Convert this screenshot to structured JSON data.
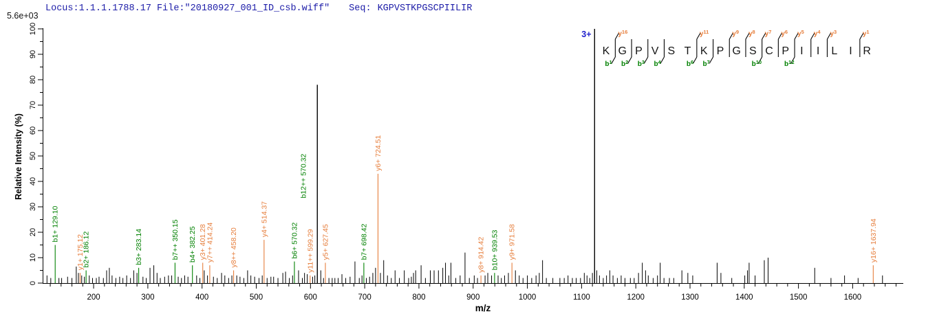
{
  "header": {
    "locus": "Locus:1.1.1.1788.17 File:\"20180927_001_ID_csb.wiff\"",
    "seq_label": "Seq:",
    "sequence": "KGPVSTKPGSCPIILIR"
  },
  "y_axis": {
    "title": "Relative  Intensity (%)",
    "max_intensity_label": "5.6e+03"
  },
  "x_axis": {
    "title": "m/z"
  },
  "peptide": {
    "charge_label": "3+",
    "sequence": "KGPVSTKPGSCPIILIR",
    "cuts": [
      {
        "gap": 0,
        "y": "y16",
        "b": "b1"
      },
      {
        "gap": 1,
        "b": "b2"
      },
      {
        "gap": 2,
        "b": "b3"
      },
      {
        "gap": 3,
        "b": "b4"
      },
      {
        "gap": 5,
        "y": "y11",
        "b": "b6"
      },
      {
        "gap": 6,
        "b": "b7"
      },
      {
        "gap": 7,
        "y": "y9"
      },
      {
        "gap": 8,
        "y": "y8"
      },
      {
        "gap": 9,
        "y": "y7",
        "b": "b10"
      },
      {
        "gap": 10,
        "y": "y6"
      },
      {
        "gap": 11,
        "y": "y5",
        "b": "b12"
      },
      {
        "gap": 12,
        "y": "y4"
      },
      {
        "gap": 13,
        "y": "y3"
      },
      {
        "gap": 15,
        "y": "y1"
      }
    ]
  },
  "colors": {
    "b_ion": "#008000",
    "y_ion": "#E67E3C",
    "peak": "#000000",
    "precursor_charge": "#2121CC",
    "header_text": "#1C1CA8"
  },
  "chart_data": {
    "type": "bar",
    "subtype": "ms2-fragmentation-spectrum",
    "xlabel": "m/z",
    "ylabel": "Relative  Intensity (%)",
    "xlim": [
      106,
      1690
    ],
    "ylim": [
      0,
      100
    ],
    "x_ticks": [
      200,
      300,
      400,
      500,
      600,
      700,
      800,
      900,
      1000,
      1100,
      1200,
      1300,
      1400,
      1500,
      1600
    ],
    "y_ticks": [
      0,
      10,
      20,
      30,
      40,
      50,
      60,
      70,
      80,
      90,
      100
    ],
    "annotated_peaks": [
      {
        "ion": "b1+",
        "mz": "129.10",
        "intensity": 15,
        "series": "b"
      },
      {
        "ion": "y1+",
        "mz": "175.12",
        "intensity": 4,
        "series": "y"
      },
      {
        "ion": "b2+",
        "mz": "186.12",
        "intensity": 5,
        "series": "b"
      },
      {
        "ion": "b3+",
        "mz": "283.14",
        "intensity": 6,
        "series": "b"
      },
      {
        "ion": "b7++",
        "mz": "350.15",
        "intensity": 8,
        "series": "b"
      },
      {
        "ion": "b4+",
        "mz": "382.25",
        "intensity": 7,
        "series": "b"
      },
      {
        "ion": "y3+",
        "mz": "401.28",
        "intensity": 8,
        "series": "y"
      },
      {
        "ion": "y7++",
        "mz": "414.24",
        "intensity": 7,
        "series": "y"
      },
      {
        "ion": "y8++",
        "mz": "458.20",
        "intensity": 5,
        "series": "y"
      },
      {
        "ion": "y4+",
        "mz": "514.37",
        "intensity": 17,
        "series": "y"
      },
      {
        "ion": "b6+",
        "mz": "570.32",
        "intensity": 8.5,
        "series": "b"
      },
      {
        "ion": "b12++",
        "mz": "570.32",
        "intensity": 8.5,
        "series": "b"
      },
      {
        "ion": "y11++",
        "mz": "599.29",
        "intensity": 3,
        "series": "y"
      },
      {
        "ion": null,
        "mz": "612.6",
        "intensity": 78,
        "series": "unassigned"
      },
      {
        "ion": "y5+",
        "mz": "627.45",
        "intensity": 8,
        "series": "y"
      },
      {
        "ion": "b7+",
        "mz": "698.42",
        "intensity": 8,
        "series": "b"
      },
      {
        "ion": "y6+",
        "mz": "724.51",
        "intensity": 43,
        "series": "y"
      },
      {
        "ion": "y8+",
        "mz": "914.42",
        "intensity": 3,
        "series": "y"
      },
      {
        "ion": "b10+",
        "mz": "939.53",
        "intensity": 4,
        "series": "b"
      },
      {
        "ion": "y9+",
        "mz": "971.58",
        "intensity": 8,
        "series": "y"
      },
      {
        "ion": null,
        "mz": "1124",
        "intensity": 100,
        "series": "precursor"
      },
      {
        "ion": "y16+",
        "mz": "1637.94",
        "intensity": 7,
        "series": "y"
      }
    ],
    "unannotated_peaks": [
      [
        114,
        3
      ],
      [
        121,
        2
      ],
      [
        136,
        2
      ],
      [
        141,
        2
      ],
      [
        152,
        2.5
      ],
      [
        160,
        2
      ],
      [
        168,
        6.5
      ],
      [
        172,
        4
      ],
      [
        178,
        3
      ],
      [
        183,
        2.5
      ],
      [
        192,
        3
      ],
      [
        198,
        2
      ],
      [
        205,
        2
      ],
      [
        210,
        2.5
      ],
      [
        218,
        2
      ],
      [
        224,
        5
      ],
      [
        229,
        6
      ],
      [
        234,
        3
      ],
      [
        241,
        2
      ],
      [
        248,
        2.5
      ],
      [
        254,
        2
      ],
      [
        261,
        3
      ],
      [
        268,
        2
      ],
      [
        274,
        5
      ],
      [
        280,
        4
      ],
      [
        291,
        2.5
      ],
      [
        297,
        2
      ],
      [
        304,
        6
      ],
      [
        311,
        7
      ],
      [
        317,
        4
      ],
      [
        323,
        2
      ],
      [
        331,
        2.5
      ],
      [
        338,
        3
      ],
      [
        344,
        3
      ],
      [
        356,
        2.5
      ],
      [
        362,
        2
      ],
      [
        368,
        3
      ],
      [
        374,
        2.5
      ],
      [
        390,
        3
      ],
      [
        396,
        2
      ],
      [
        404,
        5
      ],
      [
        410,
        3
      ],
      [
        421,
        2.5
      ],
      [
        428,
        2
      ],
      [
        436,
        4
      ],
      [
        442,
        3
      ],
      [
        449,
        2
      ],
      [
        455,
        3
      ],
      [
        464,
        3
      ],
      [
        470,
        2.5
      ],
      [
        477,
        2
      ],
      [
        484,
        5
      ],
      [
        490,
        3
      ],
      [
        497,
        2.5
      ],
      [
        505,
        2
      ],
      [
        511,
        3
      ],
      [
        520,
        2
      ],
      [
        527,
        2.5
      ],
      [
        532,
        2.5
      ],
      [
        540,
        2
      ],
      [
        549,
        4
      ],
      [
        554,
        4.5
      ],
      [
        561,
        2
      ],
      [
        567,
        3
      ],
      [
        578,
        5
      ],
      [
        585,
        2
      ],
      [
        589,
        4
      ],
      [
        594,
        3.5
      ],
      [
        604,
        2.5
      ],
      [
        608,
        3
      ],
      [
        619,
        5
      ],
      [
        624,
        2
      ],
      [
        634,
        2
      ],
      [
        640,
        2
      ],
      [
        645,
        2
      ],
      [
        651,
        2
      ],
      [
        658,
        3.5
      ],
      [
        665,
        2
      ],
      [
        673,
        2.5
      ],
      [
        682,
        8.5
      ],
      [
        690,
        2
      ],
      [
        695,
        3
      ],
      [
        703,
        2
      ],
      [
        709,
        2.5
      ],
      [
        715,
        4
      ],
      [
        720,
        6
      ],
      [
        729,
        4
      ],
      [
        735,
        9
      ],
      [
        742,
        3
      ],
      [
        749,
        2
      ],
      [
        756,
        5
      ],
      [
        764,
        2
      ],
      [
        773,
        5
      ],
      [
        781,
        2
      ],
      [
        786,
        2.5
      ],
      [
        790,
        4
      ],
      [
        794,
        5
      ],
      [
        804,
        7
      ],
      [
        812,
        2
      ],
      [
        821,
        5
      ],
      [
        828,
        5
      ],
      [
        836,
        5
      ],
      [
        844,
        6
      ],
      [
        849,
        8
      ],
      [
        855,
        3
      ],
      [
        859,
        8
      ],
      [
        868,
        2
      ],
      [
        876,
        3
      ],
      [
        885,
        12
      ],
      [
        893,
        2
      ],
      [
        902,
        3
      ],
      [
        908,
        2
      ],
      [
        922,
        3
      ],
      [
        927,
        4
      ],
      [
        934,
        3
      ],
      [
        946,
        3
      ],
      [
        952,
        2
      ],
      [
        958,
        3
      ],
      [
        965,
        4
      ],
      [
        978,
        5
      ],
      [
        985,
        3
      ],
      [
        992,
        2
      ],
      [
        1000,
        3
      ],
      [
        1008,
        2
      ],
      [
        1016,
        3
      ],
      [
        1022,
        4
      ],
      [
        1028,
        9
      ],
      [
        1035,
        2
      ],
      [
        1047,
        2
      ],
      [
        1060,
        2
      ],
      [
        1068,
        2
      ],
      [
        1075,
        3
      ],
      [
        1083,
        2
      ],
      [
        1090,
        2
      ],
      [
        1098,
        2
      ],
      [
        1105,
        4
      ],
      [
        1110,
        3
      ],
      [
        1115,
        2
      ],
      [
        1120,
        4
      ],
      [
        1128,
        5
      ],
      [
        1133,
        3
      ],
      [
        1140,
        2
      ],
      [
        1146,
        3
      ],
      [
        1152,
        5
      ],
      [
        1158,
        3
      ],
      [
        1166,
        2
      ],
      [
        1173,
        3
      ],
      [
        1180,
        2
      ],
      [
        1190,
        2
      ],
      [
        1197,
        2
      ],
      [
        1205,
        4
      ],
      [
        1212,
        8
      ],
      [
        1218,
        5
      ],
      [
        1223,
        3
      ],
      [
        1232,
        2
      ],
      [
        1240,
        3
      ],
      [
        1245,
        8
      ],
      [
        1252,
        2
      ],
      [
        1262,
        2
      ],
      [
        1270,
        2
      ],
      [
        1285,
        5
      ],
      [
        1296,
        4
      ],
      [
        1305,
        3
      ],
      [
        1350,
        8
      ],
      [
        1357,
        4
      ],
      [
        1377,
        2
      ],
      [
        1401,
        3
      ],
      [
        1406,
        5
      ],
      [
        1409,
        8
      ],
      [
        1420,
        3
      ],
      [
        1437,
        9
      ],
      [
        1444,
        10
      ],
      [
        1530,
        6
      ],
      [
        1560,
        2
      ],
      [
        1585,
        3
      ],
      [
        1610,
        2
      ],
      [
        1655,
        3
      ]
    ]
  }
}
